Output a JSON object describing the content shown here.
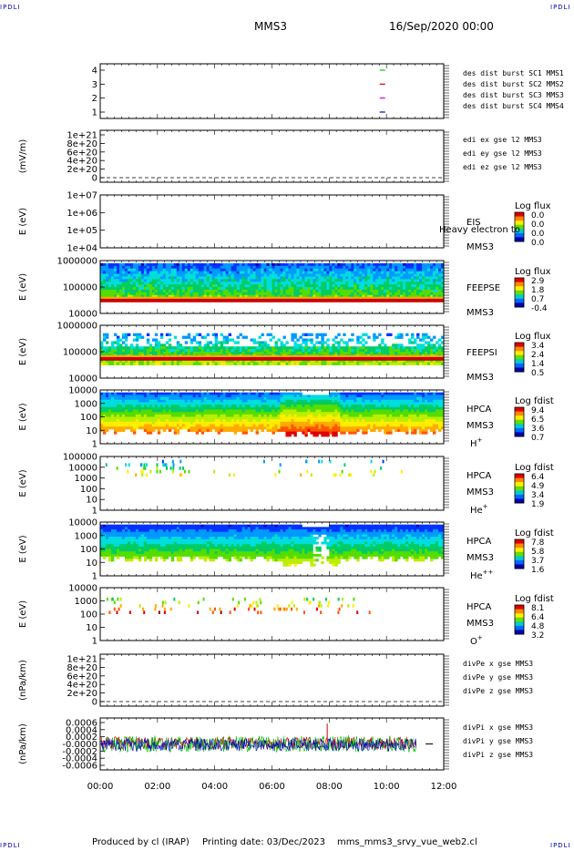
{
  "header": {
    "left_logo": "IPDLI",
    "right_logo": "IPDLI",
    "spacecraft": "MMS3",
    "datetime": "16/Sep/2020 00:00"
  },
  "footer": {
    "left_logo": "IPDLI",
    "right_logo": "IPDLI",
    "produced_by": "Produced by cl (IRAP)",
    "printing_date": "Printing date: 03/Dec/2023",
    "script_name": "mms_mms3_srvy_vue_web2.cl"
  },
  "x_axis": {
    "ticks": [
      "00:00",
      "02:00",
      "04:00",
      "06:00",
      "08:00",
      "10:00",
      "12:00"
    ]
  },
  "chart_data": [
    {
      "type": "scatter",
      "id": "burst",
      "yticks": [
        "4",
        "3",
        "2",
        "1"
      ],
      "ylim": [
        0.5,
        4.5
      ],
      "points": [
        {
          "x": 9.86,
          "y": 4,
          "color": "#00cc00"
        },
        {
          "x": 9.86,
          "y": 3,
          "color": "#dd0000"
        },
        {
          "x": 9.86,
          "y": 2,
          "color": "#dd00dd"
        },
        {
          "x": 9.86,
          "y": 1,
          "color": "#0000dd"
        }
      ],
      "legend": [
        {
          "text": "des dist burst SC1 MMS1",
          "color": "#0000cc"
        },
        {
          "text": "des dist burst SC2 MMS2",
          "color": "#cc00cc"
        },
        {
          "text": "des dist burst SC3 MMS3",
          "color": "#cc0000"
        },
        {
          "text": "des dist burst SC4 MMS4",
          "color": "#00bb00"
        }
      ]
    },
    {
      "type": "line",
      "id": "edi",
      "ylabel": "(mV/m)",
      "yticks": [
        "1e+21",
        "8e+20",
        "6e+20",
        "4e+20",
        "2e+20",
        "0"
      ],
      "ylim": [
        0,
        1e+21
      ],
      "zero_line": true,
      "legend": [
        {
          "text": "edi ex gse l2 MMS3",
          "color": "#cc0000"
        },
        {
          "text": "edi ey gse l2 MMS3",
          "color": "#00bb00"
        },
        {
          "text": "edi ez gse l2 MMS3",
          "color": "#0000cc"
        }
      ]
    },
    {
      "type": "heatmap",
      "id": "eis",
      "ylabel": "E (eV)",
      "yticks": [
        "1e+07",
        "1e+06",
        "1e+05",
        "1e+04"
      ],
      "yscale": "log",
      "instrument": "EIS",
      "instrument_extra": "Heavy electron to",
      "spacecraft": "MMS3",
      "colorbar": {
        "title": "Log flux",
        "labels": [
          "0.0",
          "0.0",
          "0.0",
          "0.0"
        ]
      },
      "pattern": "empty"
    },
    {
      "type": "heatmap",
      "id": "feepse",
      "ylabel": "E (eV)",
      "yticks": [
        "1000000",
        "100000",
        "10000"
      ],
      "yscale": "log",
      "instrument": "FEEPSE",
      "spacecraft": "MMS3",
      "colorbar": {
        "title": "Log flux",
        "labels": [
          "2.9",
          "1.8",
          "0.7",
          "-0.4"
        ]
      },
      "pattern": "feepse"
    },
    {
      "type": "heatmap",
      "id": "feepsi",
      "ylabel": "E (eV)",
      "yticks": [
        "1000000",
        "100000",
        "10000"
      ],
      "yscale": "log",
      "instrument": "FEEPSI",
      "spacecraft": "MMS3",
      "colorbar": {
        "title": "Log flux",
        "labels": [
          "3.4",
          "2.4",
          "1.4",
          "0.5"
        ]
      },
      "pattern": "feepsi"
    },
    {
      "type": "heatmap",
      "id": "hpca_h",
      "ylabel": "E (eV)",
      "yticks": [
        "10000",
        "1000",
        "100",
        "10",
        "1"
      ],
      "yscale": "log",
      "instrument": "HPCA",
      "spacecraft": "MMS3",
      "species": "H",
      "species_sup": "+",
      "colorbar": {
        "title": "Log fdist",
        "labels": [
          "9.4",
          "6.5",
          "3.6",
          "0.7"
        ]
      },
      "pattern": "hpca_h"
    },
    {
      "type": "heatmap",
      "id": "hpca_he",
      "ylabel": "E (eV)",
      "yticks": [
        "100000",
        "10000",
        "1000",
        "100",
        "10",
        "1"
      ],
      "yscale": "log",
      "instrument": "HPCA",
      "spacecraft": "MMS3",
      "species": "He",
      "species_sup": "+",
      "colorbar": {
        "title": "Log fdist",
        "labels": [
          "6.4",
          "4.9",
          "3.4",
          "1.9"
        ]
      },
      "pattern": "hpca_he"
    },
    {
      "type": "heatmap",
      "id": "hpca_hepp",
      "ylabel": "E (eV)",
      "yticks": [
        "10000",
        "1000",
        "100",
        "10",
        "1"
      ],
      "yscale": "log",
      "instrument": "HPCA",
      "spacecraft": "MMS3",
      "species": "He",
      "species_sup": "++",
      "colorbar": {
        "title": "Log fdist",
        "labels": [
          "7.8",
          "5.8",
          "3.7",
          "1.6"
        ]
      },
      "pattern": "hpca_hepp"
    },
    {
      "type": "heatmap",
      "id": "hpca_o",
      "ylabel": "E (eV)",
      "yticks": [
        "10000",
        "1000",
        "100",
        "10",
        "1"
      ],
      "yscale": "log",
      "instrument": "HPCA",
      "spacecraft": "MMS3",
      "species": "O",
      "species_sup": "+",
      "colorbar": {
        "title": "Log fdist",
        "labels": [
          "8.1",
          "6.4",
          "4.8",
          "3.2"
        ]
      },
      "pattern": "hpca_o"
    },
    {
      "type": "line",
      "id": "divpe",
      "ylabel": "(nPa/km)",
      "yticks": [
        "1e+21",
        "8e+20",
        "6e+20",
        "4e+20",
        "2e+20",
        "0"
      ],
      "ylim": [
        0,
        1e+21
      ],
      "zero_line": true,
      "legend": [
        {
          "text": "divPe x gse MMS3",
          "color": "#cc0000"
        },
        {
          "text": "divPe y gse MMS3",
          "color": "#00bb00"
        },
        {
          "text": "divPe z gse MMS3",
          "color": "#0000cc"
        }
      ]
    },
    {
      "type": "line",
      "id": "divpi",
      "ylabel": "(nPa/km)",
      "yticks": [
        "0.0006",
        "0.0004",
        "0.0002",
        "-0.0000",
        "-0.0002",
        "-0.0004",
        "-0.0006"
      ],
      "ylim": [
        -0.0007,
        0.0007
      ],
      "noise_until": 11.05,
      "spike": {
        "x": 7.93,
        "y": 0.00055
      },
      "legend": [
        {
          "text": "divPi x gse MMS3",
          "color": "#cc0000"
        },
        {
          "text": "divPi y gse MMS3",
          "color": "#00bb00"
        },
        {
          "text": "divPi z gse MMS3",
          "color": "#0000cc"
        }
      ]
    }
  ]
}
